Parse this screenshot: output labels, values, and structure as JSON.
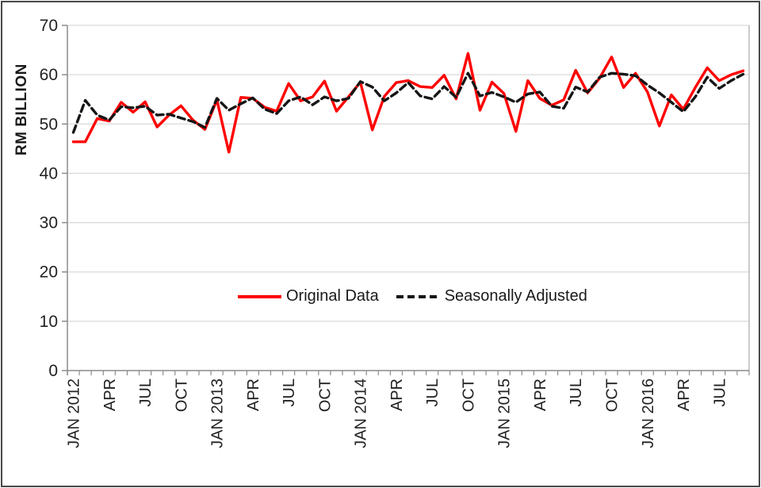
{
  "figure": {
    "y_axis_title": "RM BILLION",
    "y_ticks": [
      0,
      10,
      20,
      30,
      40,
      50,
      60,
      70
    ],
    "x_tick_labels": [
      "JAN 2012",
      "APR",
      "JUL",
      "OCT",
      "JAN 2013",
      "APR",
      "JUL",
      "OCT",
      "JAN 2014",
      "APR",
      "JUL",
      "OCT",
      "JAN 2015",
      "APR",
      "JUL",
      "OCT",
      "JAN 2016",
      "APR",
      "JUL"
    ],
    "colors": {
      "original": "#fe0000",
      "seasonal": "#161616",
      "gridline": "#d9d9d9",
      "axis": "#8c8c8c",
      "text": "#222222",
      "border": "#484848"
    }
  },
  "chart_data": {
    "type": "line",
    "title": "",
    "xlabel": "",
    "ylabel": "RM BILLION",
    "ylim": [
      0,
      70
    ],
    "grid": "horizontal",
    "legend_position": "inside-bottom-center",
    "x_start": "JAN 2012",
    "x_end": "SEP 2016",
    "categories": [
      "JAN 2012",
      "FEB 2012",
      "MAR 2012",
      "APR 2012",
      "MAY 2012",
      "JUN 2012",
      "JUL 2012",
      "AUG 2012",
      "SEP 2012",
      "OCT 2012",
      "NOV 2012",
      "DEC 2012",
      "JAN 2013",
      "FEB 2013",
      "MAR 2013",
      "APR 2013",
      "MAY 2013",
      "JUN 2013",
      "JUL 2013",
      "AUG 2013",
      "SEP 2013",
      "OCT 2013",
      "NOV 2013",
      "DEC 2013",
      "JAN 2014",
      "FEB 2014",
      "MAR 2014",
      "APR 2014",
      "MAY 2014",
      "JUN 2014",
      "JUL 2014",
      "AUG 2014",
      "SEP 2014",
      "OCT 2014",
      "NOV 2014",
      "DEC 2014",
      "JAN 2015",
      "FEB 2015",
      "MAR 2015",
      "APR 2015",
      "MAY 2015",
      "JUN 2015",
      "JUL 2015",
      "AUG 2015",
      "SEP 2015",
      "OCT 2015",
      "NOV 2015",
      "DEC 2015",
      "JAN 2016",
      "FEB 2016",
      "MAR 2016",
      "APR 2016",
      "MAY 2016",
      "JUN 2016",
      "JUL 2016",
      "AUG 2016",
      "SEP 2016"
    ],
    "series": [
      {
        "name": "Original Data",
        "color": "#fe0000",
        "dash": "solid",
        "values": [
          46.4,
          46.4,
          51.1,
          50.6,
          54.4,
          52.4,
          54.5,
          49.4,
          51.8,
          53.7,
          50.8,
          48.9,
          54.9,
          44.3,
          55.4,
          55.2,
          53.4,
          52.6,
          58.2,
          54.7,
          55.5,
          58.7,
          52.6,
          55.5,
          58.5,
          48.8,
          55.6,
          58.4,
          58.8,
          57.6,
          57.4,
          59.9,
          55.1,
          64.3,
          52.8,
          58.5,
          56.2,
          48.5,
          58.8,
          55.2,
          53.8,
          54.9,
          60.9,
          56.3,
          59.3,
          63.6,
          57.4,
          60.3,
          56.5,
          49.6,
          55.9,
          53.0,
          57.4,
          61.4,
          58.8,
          60.0,
          60.8
        ]
      },
      {
        "name": "Seasonally Adjusted",
        "color": "#161616",
        "dash": "dashed",
        "values": [
          48.3,
          54.8,
          51.8,
          50.8,
          53.5,
          53.3,
          53.6,
          51.8,
          52.0,
          51.2,
          50.5,
          49.3,
          55.2,
          52.8,
          54.1,
          55.3,
          53.0,
          52.1,
          54.7,
          55.5,
          53.9,
          55.5,
          54.7,
          55.2,
          58.6,
          57.5,
          54.7,
          56.3,
          58.4,
          55.7,
          55.1,
          57.6,
          55.4,
          60.3,
          55.7,
          56.4,
          55.5,
          54.4,
          56.1,
          56.5,
          53.6,
          53.2,
          57.5,
          56.5,
          59.5,
          60.3,
          60.1,
          59.8,
          57.9,
          56.3,
          54.4,
          52.5,
          55.5,
          59.5,
          57.2,
          58.8,
          60.1
        ]
      }
    ]
  }
}
